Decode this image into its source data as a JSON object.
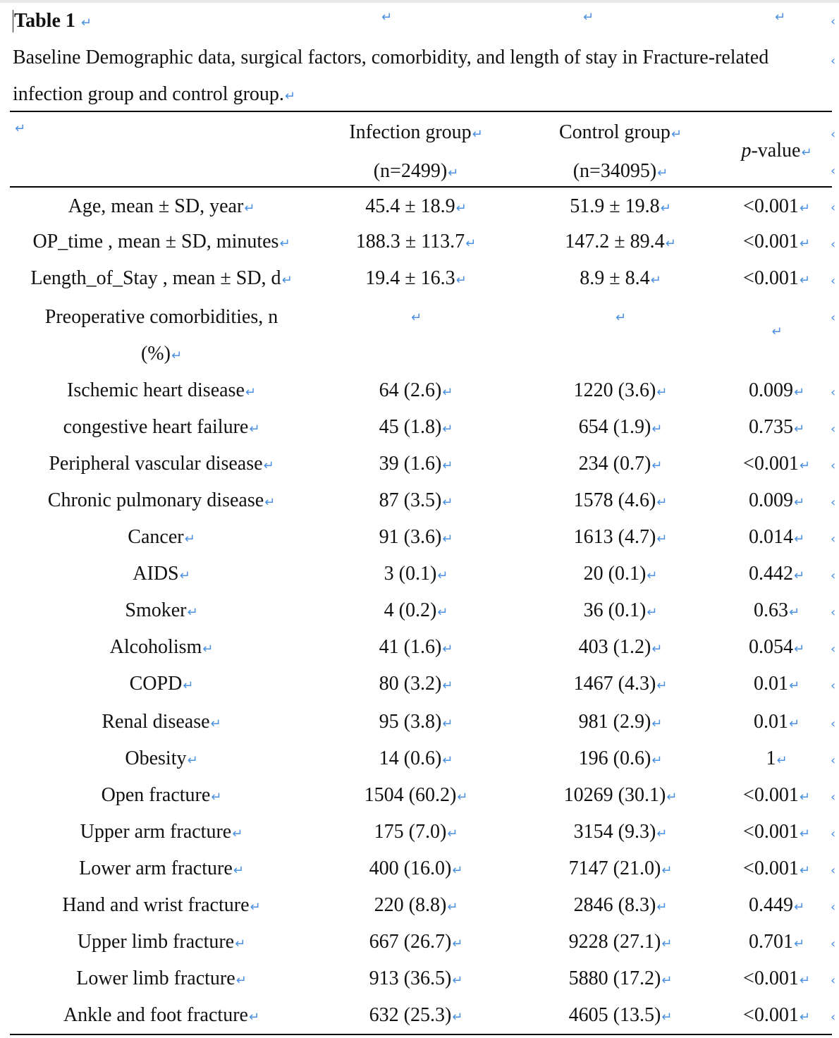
{
  "document": {
    "title": "Table 1",
    "caption": "Baseline Demographic data, surgical factors, comorbidity, and length of stay in Fracture-related infection group and control group.",
    "return_mark": "↵",
    "edge_mark": "‹"
  },
  "table": {
    "headers": [
      {
        "line1": "",
        "line2": ""
      },
      {
        "line1": "Infection group",
        "line2": "(n=2499)"
      },
      {
        "line1": "Control group",
        "line2": "(n=34095)"
      },
      {
        "line1": "p",
        "line2": "-value"
      }
    ],
    "rows": [
      [
        "Age, mean ± SD, year",
        "45.4 ± 18.9",
        "51.9 ± 19.8",
        "<0.001"
      ],
      [
        "OP_time , mean ± SD, minutes",
        "188.3 ± 113.7",
        "147.2 ± 89.4",
        "<0.001"
      ],
      [
        "Length_of_Stay , mean ± SD, d",
        "19.4 ± 16.3",
        "8.9 ± 8.4",
        "<0.001"
      ],
      [
        "Preoperative comorbidities, n (%)",
        "",
        "",
        ""
      ],
      [
        "Ischemic heart disease",
        "64 (2.6)",
        "1220 (3.6)",
        "0.009"
      ],
      [
        "congestive heart failure",
        "45 (1.8)",
        "654 (1.9)",
        "0.735"
      ],
      [
        "Peripheral vascular disease",
        "39 (1.6)",
        "234 (0.7)",
        "<0.001"
      ],
      [
        "Chronic pulmonary disease",
        "87 (3.5)",
        "1578 (4.6)",
        "0.009"
      ],
      [
        "Cancer",
        "91 (3.6)",
        "1613 (4.7)",
        "0.014"
      ],
      [
        "AIDS",
        "3 (0.1)",
        "20 (0.1)",
        "0.442"
      ],
      [
        "Smoker",
        "4 (0.2)",
        "36 (0.1)",
        "0.63"
      ],
      [
        "Alcoholism",
        "41 (1.6)",
        "403 (1.2)",
        "0.054"
      ],
      [
        "COPD",
        "80 (3.2)",
        "1467 (4.3)",
        "0.01"
      ],
      [
        "Renal disease",
        "95 (3.8)",
        "981 (2.9)",
        "0.01"
      ],
      [
        "Obesity",
        "14 (0.6)",
        "196 (0.6)",
        "1"
      ],
      [
        "Open fracture",
        "1504 (60.2)",
        "10269 (30.1)",
        "<0.001"
      ],
      [
        "Upper arm fracture",
        "175 (7.0)",
        "3154 (9.3)",
        "<0.001"
      ],
      [
        "Lower arm fracture",
        "400 (16.0)",
        "7147 (21.0)",
        "<0.001"
      ],
      [
        "Hand and wrist fracture",
        "220 (8.8)",
        "2846 (8.3)",
        "0.449"
      ],
      [
        "Upper limb fracture",
        "667 (26.7)",
        "9228 (27.1)",
        "0.701"
      ],
      [
        "Lower limb fracture",
        "913 (36.5)",
        "5880 (17.2)",
        "<0.001"
      ],
      [
        "Ankle and foot fracture",
        "632 (25.3)",
        "4605 (13.5)",
        "<0.001"
      ]
    ]
  }
}
